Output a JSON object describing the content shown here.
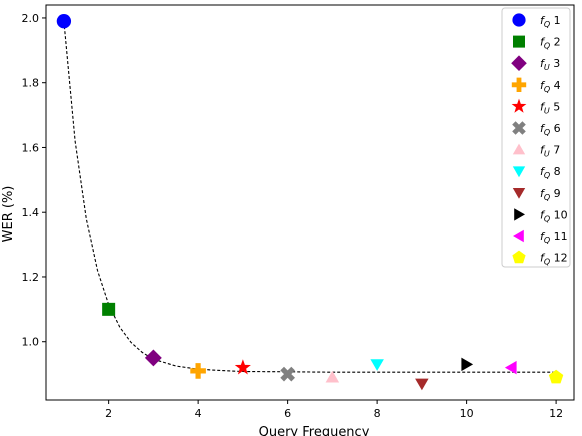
{
  "chart_data": {
    "type": "scatter",
    "title": "",
    "xlabel": "Query Frequency",
    "ylabel": "WER (%)",
    "xlim": [
      0.6,
      12.4
    ],
    "ylim": [
      0.82,
      2.04
    ],
    "xticks": [
      2,
      4,
      6,
      8,
      10,
      12
    ],
    "xtick_labels": [
      "2",
      "4",
      "6",
      "8",
      "10",
      "12"
    ],
    "yticks": [
      1.0,
      1.2,
      1.4,
      1.6,
      1.8,
      2.0
    ],
    "ytick_labels": [
      "1.0",
      "1.2",
      "1.4",
      "1.6",
      "1.8",
      "2.0"
    ],
    "grid": false,
    "legend_position": "right",
    "series": [
      {
        "name": "f_Q 1",
        "sym": "Q",
        "num": "1",
        "x": 1,
        "y": 1.99,
        "color": "#0000ff",
        "marker": "circle"
      },
      {
        "name": "f_Q 2",
        "sym": "Q",
        "num": "2",
        "x": 2,
        "y": 1.1,
        "color": "#008000",
        "marker": "square"
      },
      {
        "name": "f_U 3",
        "sym": "U",
        "num": "3",
        "x": 3,
        "y": 0.95,
        "color": "#800080",
        "marker": "diamond"
      },
      {
        "name": "f_Q 4",
        "sym": "Q",
        "num": "4",
        "x": 4,
        "y": 0.91,
        "color": "#ffa500",
        "marker": "plus"
      },
      {
        "name": "f_U 5",
        "sym": "U",
        "num": "5",
        "x": 5,
        "y": 0.92,
        "color": "#ff0000",
        "marker": "star"
      },
      {
        "name": "f_Q 6",
        "sym": "Q",
        "num": "6",
        "x": 6,
        "y": 0.9,
        "color": "#808080",
        "marker": "x"
      },
      {
        "name": "f_U 7",
        "sym": "U",
        "num": "7",
        "x": 7,
        "y": 0.89,
        "color": "#ffc0cb",
        "marker": "triangle-up"
      },
      {
        "name": "f_Q 8",
        "sym": "Q",
        "num": "8",
        "x": 8,
        "y": 0.93,
        "color": "#00ffff",
        "marker": "triangle-down"
      },
      {
        "name": "f_Q 9",
        "sym": "Q",
        "num": "9",
        "x": 9,
        "y": 0.87,
        "color": "#a52a2a",
        "marker": "triangle-down"
      },
      {
        "name": "f_Q 10",
        "sym": "Q",
        "num": "10",
        "x": 10,
        "y": 0.93,
        "color": "#000000",
        "marker": "triangle-right"
      },
      {
        "name": "f_Q 11",
        "sym": "Q",
        "num": "11",
        "x": 11,
        "y": 0.92,
        "color": "#ff00ff",
        "marker": "triangle-left"
      },
      {
        "name": "f_Q 12",
        "sym": "Q",
        "num": "12",
        "x": 12,
        "y": 0.89,
        "color": "#ffff00",
        "marker": "pentagon"
      }
    ],
    "fit_curve": {
      "style": "dashed",
      "color": "#000000",
      "points": [
        [
          1,
          1.99
        ],
        [
          1.25,
          1.62
        ],
        [
          1.5,
          1.38
        ],
        [
          1.75,
          1.22
        ],
        [
          2,
          1.115
        ],
        [
          2.25,
          1.045
        ],
        [
          2.5,
          0.998
        ],
        [
          2.75,
          0.967
        ],
        [
          3,
          0.946
        ],
        [
          3.5,
          0.925
        ],
        [
          4,
          0.915
        ],
        [
          4.5,
          0.911
        ],
        [
          5,
          0.908
        ],
        [
          6,
          0.907
        ],
        [
          7,
          0.906
        ],
        [
          8,
          0.906
        ],
        [
          9,
          0.906
        ],
        [
          10,
          0.906
        ],
        [
          11,
          0.906
        ],
        [
          12,
          0.906
        ]
      ]
    }
  }
}
